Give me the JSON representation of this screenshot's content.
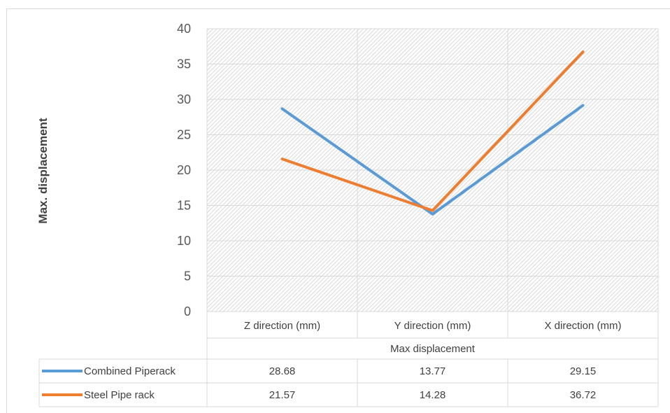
{
  "chart_data": {
    "type": "line",
    "ylabel": "Max. displacement",
    "xlabel": "Max displacement",
    "categories": [
      "Z direction (mm)",
      "Y direction (mm)",
      "X direction (mm)"
    ],
    "ylim": [
      0,
      40
    ],
    "yticks": [
      "0",
      "5",
      "10",
      "15",
      "20",
      "25",
      "30",
      "35",
      "40"
    ],
    "grid": true,
    "legend": "data-table",
    "series": [
      {
        "name": "Combined Piperack",
        "color": "#5b9bd5",
        "values": [
          28.68,
          13.77,
          29.15
        ],
        "labels": [
          "28.68",
          "13.77",
          "29.15"
        ]
      },
      {
        "name": "Steel Pipe rack",
        "color": "#ed7d31",
        "values": [
          21.57,
          14.28,
          36.72
        ],
        "labels": [
          "21.57",
          "14.28",
          "36.72"
        ]
      }
    ]
  }
}
